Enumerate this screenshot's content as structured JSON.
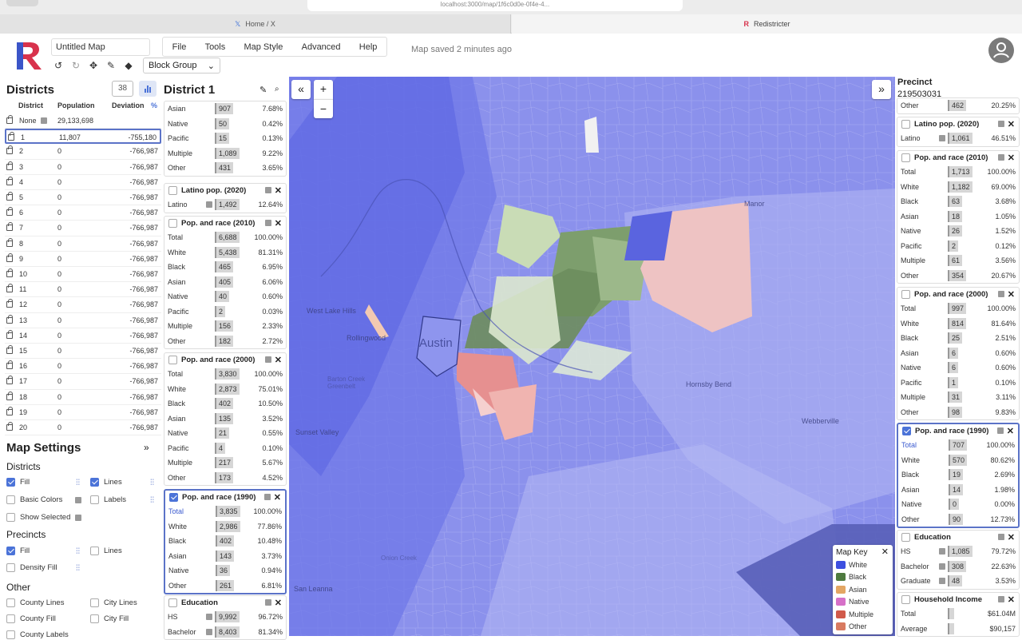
{
  "browser": {
    "url": "localhost:3000/map/1f6c0d0e-0f4e-4...",
    "tab1": "Home / X",
    "tab2": "Redistricter"
  },
  "header": {
    "map_name": "Untitled Map",
    "menu": [
      "File",
      "Tools",
      "Map Style",
      "Advanced",
      "Help"
    ],
    "saved_status": "Map saved 2 minutes ago",
    "unit_select": "Block Group"
  },
  "districts": {
    "title": "Districts",
    "count": "38",
    "columns": [
      "District",
      "Population",
      "Deviation",
      "%"
    ],
    "rows": [
      {
        "d": "None",
        "pop": "29,133,698",
        "dev": ""
      },
      {
        "d": "1",
        "pop": "11,807",
        "dev": "-755,180"
      },
      {
        "d": "2",
        "pop": "0",
        "dev": "-766,987"
      },
      {
        "d": "3",
        "pop": "0",
        "dev": "-766,987"
      },
      {
        "d": "4",
        "pop": "0",
        "dev": "-766,987"
      },
      {
        "d": "5",
        "pop": "0",
        "dev": "-766,987"
      },
      {
        "d": "6",
        "pop": "0",
        "dev": "-766,987"
      },
      {
        "d": "7",
        "pop": "0",
        "dev": "-766,987"
      },
      {
        "d": "8",
        "pop": "0",
        "dev": "-766,987"
      },
      {
        "d": "9",
        "pop": "0",
        "dev": "-766,987"
      },
      {
        "d": "10",
        "pop": "0",
        "dev": "-766,987"
      },
      {
        "d": "11",
        "pop": "0",
        "dev": "-766,987"
      },
      {
        "d": "12",
        "pop": "0",
        "dev": "-766,987"
      },
      {
        "d": "13",
        "pop": "0",
        "dev": "-766,987"
      },
      {
        "d": "14",
        "pop": "0",
        "dev": "-766,987"
      },
      {
        "d": "15",
        "pop": "0",
        "dev": "-766,987"
      },
      {
        "d": "16",
        "pop": "0",
        "dev": "-766,987"
      },
      {
        "d": "17",
        "pop": "0",
        "dev": "-766,987"
      },
      {
        "d": "18",
        "pop": "0",
        "dev": "-766,987"
      },
      {
        "d": "19",
        "pop": "0",
        "dev": "-766,987"
      },
      {
        "d": "20",
        "pop": "0",
        "dev": "-766,987"
      }
    ]
  },
  "map_settings": {
    "title": "Map Settings",
    "districts_label": "Districts",
    "fill": "Fill",
    "lines": "Lines",
    "basic_colors": "Basic Colors",
    "labels": "Labels",
    "show_selected": "Show Selected",
    "precincts_label": "Precincts",
    "p_fill": "Fill",
    "p_lines": "Lines",
    "density_fill": "Density Fill",
    "other_label": "Other",
    "county_lines": "County Lines",
    "city_lines": "City Lines",
    "county_fill": "County Fill",
    "city_fill": "City Fill",
    "county_labels": "County Labels"
  },
  "district_panel": {
    "title": "District 1",
    "top_rows": [
      {
        "k": "Asian",
        "v": "907",
        "p": "7.68%"
      },
      {
        "k": "Native",
        "v": "50",
        "p": "0.42%"
      },
      {
        "k": "Pacific",
        "v": "15",
        "p": "0.13%"
      },
      {
        "k": "Multiple",
        "v": "1,089",
        "p": "9.22%"
      },
      {
        "k": "Other",
        "v": "431",
        "p": "3.65%"
      }
    ],
    "latino": {
      "title": "Latino pop. (2020)",
      "k": "Latino",
      "v": "1,492",
      "p": "12.64%"
    },
    "pr2010": {
      "title": "Pop. and race (2010)",
      "rows": [
        {
          "k": "Total",
          "v": "6,688",
          "p": "100.00%"
        },
        {
          "k": "White",
          "v": "5,438",
          "p": "81.31%"
        },
        {
          "k": "Black",
          "v": "465",
          "p": "6.95%"
        },
        {
          "k": "Asian",
          "v": "405",
          "p": "6.06%"
        },
        {
          "k": "Native",
          "v": "40",
          "p": "0.60%"
        },
        {
          "k": "Pacific",
          "v": "2",
          "p": "0.03%"
        },
        {
          "k": "Multiple",
          "v": "156",
          "p": "2.33%"
        },
        {
          "k": "Other",
          "v": "182",
          "p": "2.72%"
        }
      ]
    },
    "pr2000": {
      "title": "Pop. and race (2000)",
      "rows": [
        {
          "k": "Total",
          "v": "3,830",
          "p": "100.00%"
        },
        {
          "k": "White",
          "v": "2,873",
          "p": "75.01%"
        },
        {
          "k": "Black",
          "v": "402",
          "p": "10.50%"
        },
        {
          "k": "Asian",
          "v": "135",
          "p": "3.52%"
        },
        {
          "k": "Native",
          "v": "21",
          "p": "0.55%"
        },
        {
          "k": "Pacific",
          "v": "4",
          "p": "0.10%"
        },
        {
          "k": "Multiple",
          "v": "217",
          "p": "5.67%"
        },
        {
          "k": "Other",
          "v": "173",
          "p": "4.52%"
        }
      ]
    },
    "pr1990": {
      "title": "Pop. and race (1990)",
      "rows": [
        {
          "k": "Total",
          "v": "3,835",
          "p": "100.00%"
        },
        {
          "k": "White",
          "v": "2,986",
          "p": "77.86%"
        },
        {
          "k": "Black",
          "v": "402",
          "p": "10.48%"
        },
        {
          "k": "Asian",
          "v": "143",
          "p": "3.73%"
        },
        {
          "k": "Native",
          "v": "36",
          "p": "0.94%"
        },
        {
          "k": "Other",
          "v": "261",
          "p": "6.81%"
        }
      ]
    },
    "edu": {
      "title": "Education",
      "rows": [
        {
          "k": "HS",
          "v": "9,992",
          "p": "96.72%"
        },
        {
          "k": "Bachelor",
          "v": "8,403",
          "p": "81.34%"
        }
      ]
    }
  },
  "precinct_panel": {
    "title": "Precinct",
    "id": "219503031",
    "top_row": {
      "k": "Other",
      "v": "462",
      "p": "20.25%"
    },
    "latino": {
      "title": "Latino pop. (2020)",
      "k": "Latino",
      "v": "1,061",
      "p": "46.51%"
    },
    "pr2010": {
      "title": "Pop. and race (2010)",
      "rows": [
        {
          "k": "Total",
          "v": "1,713",
          "p": "100.00%"
        },
        {
          "k": "White",
          "v": "1,182",
          "p": "69.00%"
        },
        {
          "k": "Black",
          "v": "63",
          "p": "3.68%"
        },
        {
          "k": "Asian",
          "v": "18",
          "p": "1.05%"
        },
        {
          "k": "Native",
          "v": "26",
          "p": "1.52%"
        },
        {
          "k": "Pacific",
          "v": "2",
          "p": "0.12%"
        },
        {
          "k": "Multiple",
          "v": "61",
          "p": "3.56%"
        },
        {
          "k": "Other",
          "v": "354",
          "p": "20.67%"
        }
      ]
    },
    "pr2000": {
      "title": "Pop. and race (2000)",
      "rows": [
        {
          "k": "Total",
          "v": "997",
          "p": "100.00%"
        },
        {
          "k": "White",
          "v": "814",
          "p": "81.64%"
        },
        {
          "k": "Black",
          "v": "25",
          "p": "2.51%"
        },
        {
          "k": "Asian",
          "v": "6",
          "p": "0.60%"
        },
        {
          "k": "Native",
          "v": "6",
          "p": "0.60%"
        },
        {
          "k": "Pacific",
          "v": "1",
          "p": "0.10%"
        },
        {
          "k": "Multiple",
          "v": "31",
          "p": "3.11%"
        },
        {
          "k": "Other",
          "v": "98",
          "p": "9.83%"
        }
      ]
    },
    "pr1990": {
      "title": "Pop. and race (1990)",
      "rows": [
        {
          "k": "Total",
          "v": "707",
          "p": "100.00%"
        },
        {
          "k": "White",
          "v": "570",
          "p": "80.62%"
        },
        {
          "k": "Black",
          "v": "19",
          "p": "2.69%"
        },
        {
          "k": "Asian",
          "v": "14",
          "p": "1.98%"
        },
        {
          "k": "Native",
          "v": "0",
          "p": "0.00%"
        },
        {
          "k": "Other",
          "v": "90",
          "p": "12.73%"
        }
      ]
    },
    "edu": {
      "title": "Education",
      "rows": [
        {
          "k": "HS",
          "v": "1,085",
          "p": "79.72%"
        },
        {
          "k": "Bachelor",
          "v": "308",
          "p": "22.63%"
        },
        {
          "k": "Graduate",
          "v": "48",
          "p": "3.53%"
        }
      ]
    },
    "income": {
      "title": "Household Income",
      "rows": [
        {
          "k": "Total",
          "v": "",
          "p": "$61.04M"
        },
        {
          "k": "Average",
          "v": "",
          "p": "$90,157"
        }
      ]
    }
  },
  "map": {
    "labels": [
      "Austin",
      "West Lake Hills",
      "Rollingwood",
      "Manor",
      "Hornsby Bend",
      "Webberville",
      "Sunset Valley",
      "San Leanna",
      "Barton Creek Greenbelt",
      "Onion Creek"
    ],
    "key_title": "Map Key",
    "key": [
      {
        "label": "White",
        "color": "#3d4fe0"
      },
      {
        "label": "Black",
        "color": "#4e7a3f"
      },
      {
        "label": "Asian",
        "color": "#e3a663"
      },
      {
        "label": "Native",
        "color": "#d670c8"
      },
      {
        "label": "Multiple",
        "color": "#d15a4a"
      },
      {
        "label": "Other",
        "color": "#d87a60"
      }
    ]
  }
}
